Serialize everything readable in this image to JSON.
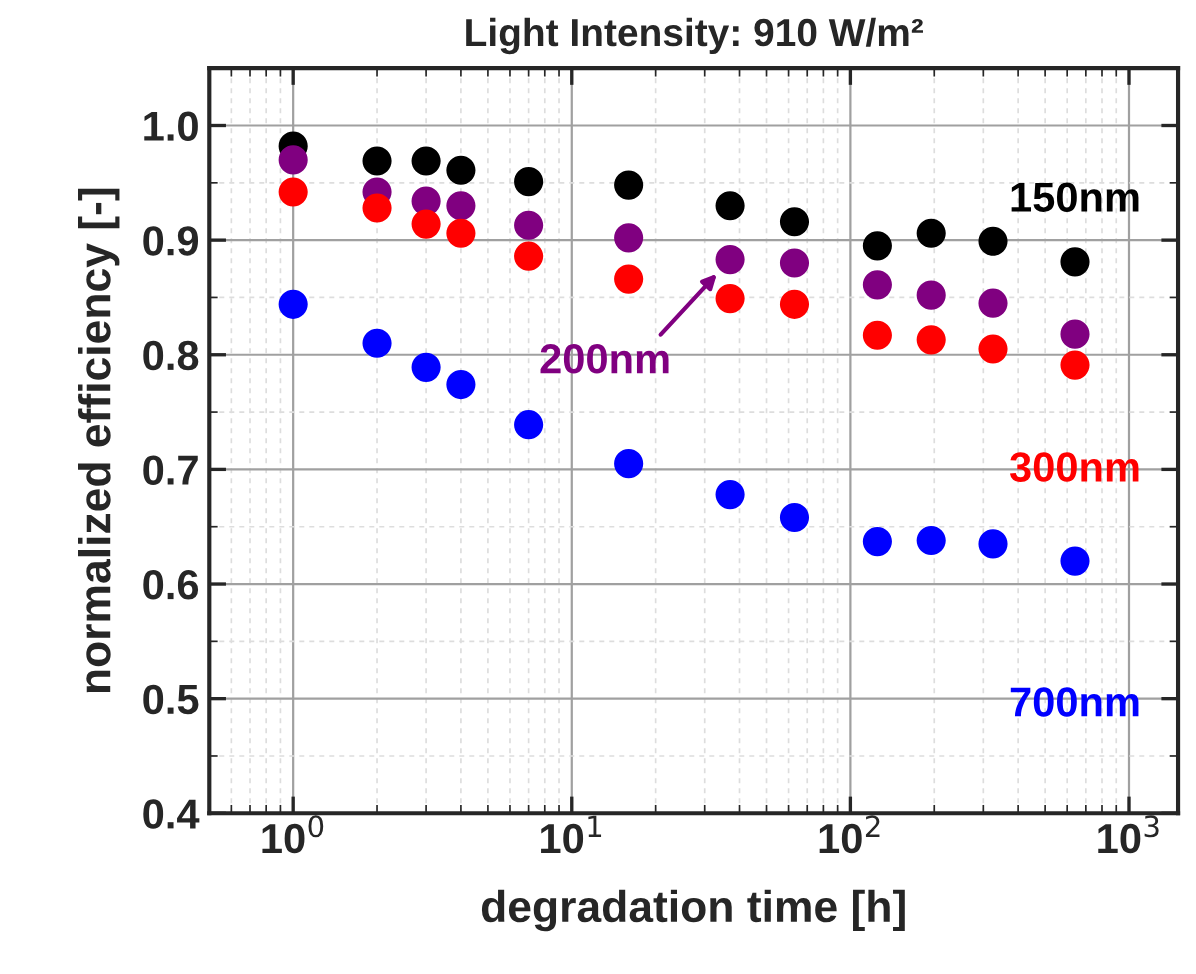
{
  "chart_data": {
    "type": "scatter",
    "title": "Light Intensity: 910 W/m²",
    "xlabel": "degradation time [h]",
    "ylabel": "normalized efficiency [-]",
    "x": [
      1,
      2,
      3,
      4,
      7,
      16,
      37,
      63,
      125,
      195,
      325,
      640
    ],
    "series": [
      {
        "name": "150nm",
        "color": "#000000",
        "values": [
          0.982,
          0.969,
          0.969,
          0.961,
          0.951,
          0.948,
          0.93,
          0.916,
          0.895,
          0.906,
          0.899,
          0.881
        ]
      },
      {
        "name": "200nm",
        "color": "#800080",
        "values": [
          0.97,
          0.942,
          0.934,
          0.93,
          0.913,
          0.902,
          0.883,
          0.88,
          0.861,
          0.852,
          0.845,
          0.818
        ]
      },
      {
        "name": "300nm",
        "color": "#ff0000",
        "values": [
          0.942,
          0.928,
          0.914,
          0.906,
          0.886,
          0.866,
          0.849,
          0.844,
          0.817,
          0.813,
          0.805,
          0.791
        ]
      },
      {
        "name": "700nm",
        "color": "#0000ff",
        "values": [
          0.844,
          0.81,
          0.789,
          0.774,
          0.739,
          0.705,
          0.678,
          0.658,
          0.637,
          0.638,
          0.635,
          0.62
        ]
      }
    ],
    "log": "x",
    "xlim": [
      0.5,
      1500
    ],
    "xticks": [
      {
        "value": 1,
        "label": "10$^{0}$"
      },
      {
        "value": 10,
        "label": "10$^{1}$"
      },
      {
        "value": 100,
        "label": "10$^{2}$"
      },
      {
        "value": 1000,
        "label": "10$^{3}$"
      }
    ],
    "ylim": [
      0.4,
      1.05
    ],
    "yticks": [
      {
        "value": 0.4,
        "label": "0.4"
      },
      {
        "value": 0.5,
        "label": "0.5"
      },
      {
        "value": 0.6,
        "label": "0.6"
      },
      {
        "value": 0.7,
        "label": "0.7"
      },
      {
        "value": 0.8,
        "label": "0.8"
      },
      {
        "value": 0.9,
        "label": "0.9"
      },
      {
        "value": 1.0,
        "label": "1.0"
      }
    ],
    "grid": true,
    "marker": "circle"
  }
}
